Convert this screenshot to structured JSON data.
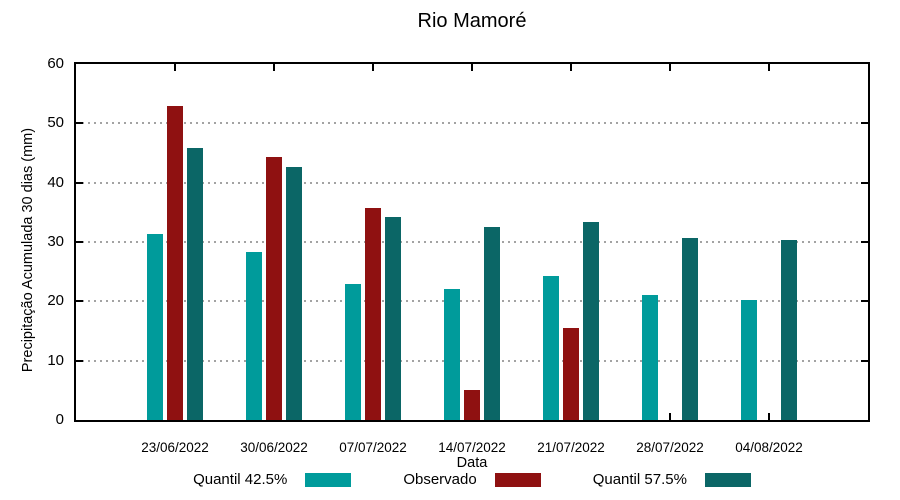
{
  "chart_data": {
    "type": "bar",
    "title": "Rio Mamoré",
    "xlabel": "Data",
    "ylabel": "Precipitação Acumulada 30 dias (mm)",
    "categories": [
      "23/06/2022",
      "30/06/2022",
      "07/07/2022",
      "14/07/2022",
      "21/07/2022",
      "28/07/2022",
      "04/08/2022"
    ],
    "series": [
      {
        "name": "Quantil 42.5%",
        "color": "#009B9B",
        "values": [
          31.3,
          28.3,
          23.0,
          22.1,
          24.3,
          21.0,
          20.3
        ]
      },
      {
        "name": "Observado",
        "color": "#8F1111",
        "values": [
          53.0,
          44.3,
          35.7,
          5.1,
          15.5,
          null,
          null
        ]
      },
      {
        "name": "Quantil 57.5%",
        "color": "#0B6666",
        "values": [
          45.8,
          42.6,
          34.2,
          32.5,
          33.4,
          30.6,
          30.4
        ]
      }
    ],
    "ylim": [
      0,
      60
    ],
    "yticks": [
      0,
      10,
      20,
      30,
      40,
      50,
      60
    ],
    "grid": "horizontal dotted at 10,20,30,40,50",
    "grid_color": "#A3A3A3",
    "axis_color": "#000000",
    "legend_position": "bottom-center"
  }
}
